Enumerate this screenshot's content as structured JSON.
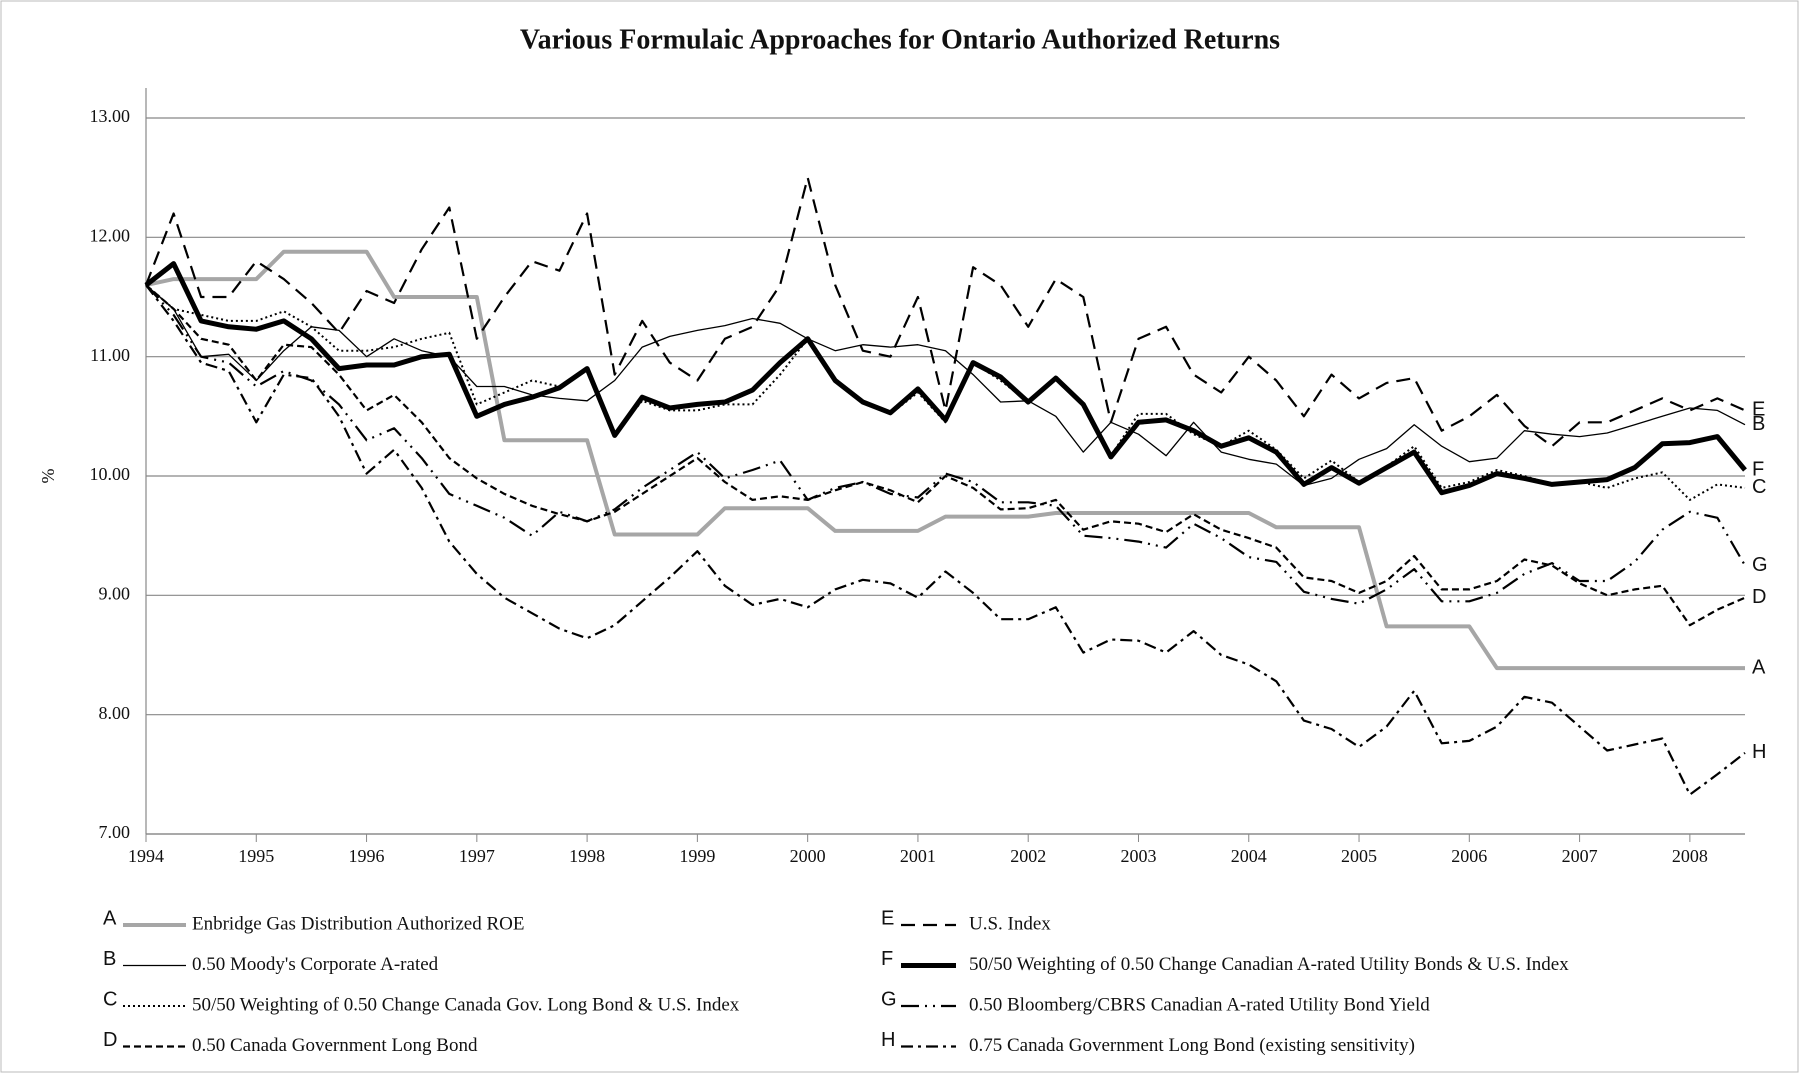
{
  "chart_data": {
    "type": "line",
    "title": "Various Formulaic Approaches for Ontario Authorized Returns",
    "y_label": "%",
    "x": [
      1994,
      1994.25,
      1994.5,
      1994.75,
      1995,
      1995.25,
      1995.5,
      1995.75,
      1996,
      1996.25,
      1996.5,
      1996.75,
      1997,
      1997.25,
      1997.5,
      1997.75,
      1998,
      1998.25,
      1998.5,
      1998.75,
      1999,
      1999.25,
      1999.5,
      1999.75,
      2000,
      2000.25,
      2000.5,
      2000.75,
      2001,
      2001.25,
      2001.5,
      2001.75,
      2002,
      2002.25,
      2002.5,
      2002.75,
      2003,
      2003.25,
      2003.5,
      2003.75,
      2004,
      2004.25,
      2004.5,
      2004.75,
      2005,
      2005.25,
      2005.5,
      2005.75,
      2006,
      2006.25,
      2006.5,
      2006.75,
      2007,
      2007.25,
      2007.5,
      2007.75,
      2008,
      2008.25,
      2008.5
    ],
    "xlim": [
      1994,
      2008.5
    ],
    "xticks": [
      1994,
      1995,
      1996,
      1997,
      1998,
      1999,
      2000,
      2001,
      2002,
      2003,
      2004,
      2005,
      2006,
      2007,
      2008
    ],
    "ylim": [
      7,
      13
    ],
    "yticks": [
      {
        "value": 7,
        "label": "7.00"
      },
      {
        "value": 8,
        "label": "8.00"
      },
      {
        "value": 9,
        "label": "9.00"
      },
      {
        "value": 10,
        "label": "10.00"
      },
      {
        "value": 11,
        "label": "11.00"
      },
      {
        "value": 12,
        "label": "12.00"
      },
      {
        "value": 13,
        "label": "13.00"
      }
    ],
    "grid": true,
    "series": [
      {
        "letter": "A",
        "name": "Enbridge Gas Distribution Authorized ROE",
        "color": "#a6a6a6",
        "width": 4,
        "dash": "none",
        "values": [
          11.6,
          11.65,
          11.65,
          11.65,
          11.65,
          11.88,
          11.88,
          11.88,
          11.88,
          11.5,
          11.5,
          11.5,
          11.5,
          10.3,
          10.3,
          10.3,
          10.3,
          9.51,
          9.51,
          9.51,
          9.51,
          9.73,
          9.73,
          9.73,
          9.73,
          9.54,
          9.54,
          9.54,
          9.54,
          9.66,
          9.66,
          9.66,
          9.66,
          9.69,
          9.69,
          9.69,
          9.69,
          9.69,
          9.69,
          9.69,
          9.69,
          9.57,
          9.57,
          9.57,
          9.57,
          8.74,
          8.74,
          8.74,
          8.74,
          8.39,
          8.39,
          8.39,
          8.39,
          8.39,
          8.39,
          8.39,
          8.39,
          8.39,
          8.39
        ]
      },
      {
        "letter": "B",
        "name": "0.50 Moody's Corporate A-rated",
        "color": "#000000",
        "width": 1.3,
        "dash": "none",
        "values": [
          11.6,
          11.4,
          11.0,
          11.02,
          10.8,
          11.05,
          11.25,
          11.22,
          11.0,
          11.15,
          11.05,
          11.0,
          10.75,
          10.75,
          10.68,
          10.65,
          10.63,
          10.8,
          11.08,
          11.17,
          11.22,
          11.26,
          11.32,
          11.28,
          11.15,
          11.05,
          11.1,
          11.08,
          11.1,
          11.05,
          10.85,
          10.62,
          10.63,
          10.5,
          10.2,
          10.45,
          10.35,
          10.17,
          10.45,
          10.2,
          10.14,
          10.1,
          9.92,
          9.98,
          10.14,
          10.23,
          10.43,
          10.25,
          10.12,
          10.15,
          10.38,
          10.35,
          10.33,
          10.36,
          10.43,
          10.5,
          10.57,
          10.55,
          10.43
        ]
      },
      {
        "letter": "C",
        "name": "50/50 Weighting of 0.50 Change Canada Gov. Long Bond & U.S. Index",
        "color": "#000000",
        "width": 2,
        "dash": "2,3",
        "values": [
          11.6,
          11.4,
          11.35,
          11.3,
          11.3,
          11.38,
          11.25,
          11.05,
          11.05,
          11.08,
          11.15,
          11.2,
          10.6,
          10.7,
          10.8,
          10.75,
          10.9,
          10.35,
          10.63,
          10.55,
          10.55,
          10.6,
          10.6,
          10.85,
          11.15,
          10.8,
          10.62,
          10.52,
          10.7,
          10.45,
          10.95,
          10.8,
          10.62,
          10.82,
          10.6,
          10.17,
          10.52,
          10.52,
          10.35,
          10.25,
          10.38,
          10.22,
          9.98,
          10.13,
          9.95,
          10.08,
          10.25,
          9.9,
          9.95,
          10.05,
          10.0,
          9.93,
          9.95,
          9.9,
          9.98,
          10.03,
          9.8,
          9.93,
          9.9
        ]
      },
      {
        "letter": "D",
        "name": "0.50 Canada Government Long Bond",
        "color": "#000000",
        "width": 2.2,
        "dash": "7,4",
        "values": [
          11.6,
          11.4,
          11.15,
          11.1,
          10.8,
          11.1,
          11.08,
          10.85,
          10.55,
          10.68,
          10.45,
          10.15,
          9.98,
          9.85,
          9.75,
          9.68,
          9.62,
          9.7,
          9.85,
          10.0,
          10.15,
          9.95,
          9.8,
          9.83,
          9.8,
          9.88,
          9.95,
          9.88,
          9.78,
          10.0,
          9.9,
          9.72,
          9.73,
          9.8,
          9.55,
          9.62,
          9.6,
          9.53,
          9.68,
          9.55,
          9.48,
          9.4,
          9.15,
          9.12,
          9.02,
          9.12,
          9.33,
          9.05,
          9.05,
          9.12,
          9.3,
          9.25,
          9.1,
          9.0,
          9.05,
          9.08,
          8.75,
          8.88,
          8.98
        ]
      },
      {
        "letter": "E",
        "name": "U.S. Index",
        "color": "#000000",
        "width": 2.2,
        "dash": "14,8",
        "values": [
          11.6,
          12.2,
          11.5,
          11.5,
          11.8,
          11.65,
          11.45,
          11.2,
          11.55,
          11.45,
          11.9,
          12.25,
          11.15,
          11.5,
          11.8,
          11.72,
          12.2,
          10.85,
          11.3,
          10.95,
          10.8,
          11.15,
          11.25,
          11.6,
          12.5,
          11.6,
          11.05,
          11.0,
          11.5,
          10.55,
          11.75,
          11.6,
          11.25,
          11.65,
          11.5,
          10.45,
          11.15,
          11.25,
          10.85,
          10.7,
          11.0,
          10.8,
          10.5,
          10.85,
          10.65,
          10.78,
          10.82,
          10.38,
          10.5,
          10.68,
          10.42,
          10.25,
          10.45,
          10.45,
          10.55,
          10.65,
          10.55,
          10.65,
          10.55
        ]
      },
      {
        "letter": "F",
        "name": "50/50 Weighting of 0.50 Change Canadian A-rated Utility Bonds & U.S. Index",
        "color": "#000000",
        "width": 5,
        "dash": "none",
        "values": [
          11.6,
          11.78,
          11.3,
          11.25,
          11.23,
          11.3,
          11.15,
          10.9,
          10.93,
          10.93,
          11.0,
          11.02,
          10.5,
          10.6,
          10.66,
          10.74,
          10.9,
          10.34,
          10.66,
          10.57,
          10.6,
          10.62,
          10.72,
          10.95,
          11.15,
          10.8,
          10.62,
          10.53,
          10.73,
          10.47,
          10.95,
          10.83,
          10.62,
          10.82,
          10.6,
          10.16,
          10.45,
          10.47,
          10.38,
          10.25,
          10.32,
          10.2,
          9.93,
          10.07,
          9.94,
          10.07,
          10.2,
          9.86,
          9.92,
          10.02,
          9.98,
          9.93,
          9.95,
          9.97,
          10.07,
          10.27,
          10.28,
          10.33,
          10.05
        ]
      },
      {
        "letter": "G",
        "name": "0.50 Bloomberg/CBRS Canadian A-rated Utility Bond Yield",
        "color": "#000000",
        "width": 2.2,
        "dash": "18,6,2,6,2,6",
        "values": [
          11.6,
          11.35,
          11.0,
          10.95,
          10.75,
          10.88,
          10.8,
          10.6,
          10.3,
          10.4,
          10.15,
          9.85,
          9.75,
          9.65,
          9.5,
          9.7,
          9.62,
          9.72,
          9.9,
          10.05,
          10.2,
          9.98,
          10.05,
          10.13,
          9.8,
          9.9,
          9.95,
          9.85,
          9.82,
          10.02,
          9.95,
          9.78,
          9.78,
          9.75,
          9.5,
          9.48,
          9.45,
          9.4,
          9.6,
          9.48,
          9.32,
          9.28,
          9.03,
          8.97,
          8.93,
          9.05,
          9.22,
          8.95,
          8.95,
          9.02,
          9.18,
          9.27,
          9.12,
          9.12,
          9.28,
          9.55,
          9.7,
          9.65,
          9.25
        ]
      },
      {
        "letter": "H",
        "name": "0.75 Canada Government Long Bond (existing sensitivity)",
        "color": "#000000",
        "width": 2.2,
        "dash": "12,5,3,5",
        "values": [
          11.6,
          11.3,
          10.95,
          10.88,
          10.45,
          10.85,
          10.82,
          10.5,
          10.02,
          10.22,
          9.9,
          9.45,
          9.18,
          8.98,
          8.85,
          8.72,
          8.64,
          8.75,
          8.95,
          9.15,
          9.37,
          9.08,
          8.92,
          8.97,
          8.9,
          9.05,
          9.13,
          9.1,
          8.98,
          9.2,
          9.02,
          8.8,
          8.8,
          8.9,
          8.52,
          8.63,
          8.62,
          8.52,
          8.7,
          8.5,
          8.42,
          8.28,
          7.95,
          7.88,
          7.73,
          7.9,
          8.2,
          7.76,
          7.78,
          7.9,
          8.15,
          8.1,
          7.9,
          7.7,
          7.75,
          7.8,
          7.33,
          7.5,
          7.68
        ]
      }
    ]
  }
}
